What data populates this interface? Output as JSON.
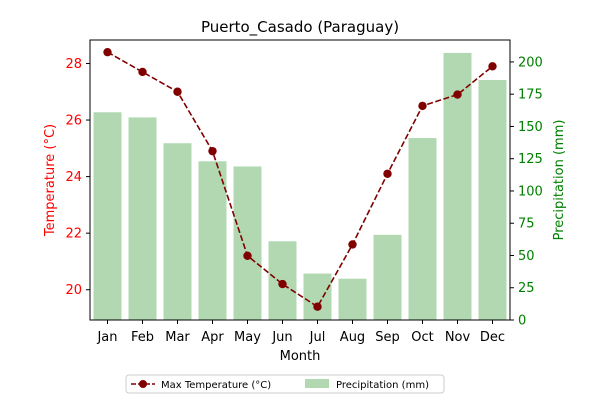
{
  "chart_data": {
    "type": "bar+line",
    "title": "Puerto_Casado (Paraguay)",
    "xlabel": "Month",
    "ylabel_left": "Temperature (°C)",
    "ylabel_right": "Precipitation (mm)",
    "categories": [
      "Jan",
      "Feb",
      "Mar",
      "Apr",
      "May",
      "Jun",
      "Jul",
      "Aug",
      "Sep",
      "Oct",
      "Nov",
      "Dec"
    ],
    "series": [
      {
        "name": "Max Temperature (°C)",
        "type": "line",
        "axis": "left",
        "values": [
          28.4,
          27.7,
          27.0,
          24.9,
          21.2,
          20.2,
          19.4,
          21.6,
          24.1,
          26.5,
          26.9,
          27.9
        ]
      },
      {
        "name": "Precipitation (mm)",
        "type": "bar",
        "axis": "right",
        "values": [
          161,
          157,
          137,
          123,
          119,
          61,
          36,
          32,
          66,
          141,
          207,
          186
        ]
      }
    ],
    "ylim_left": [
      18.93,
      28.83
    ],
    "ylim_right": [
      0,
      217
    ],
    "yticks_left": [
      "20",
      "22",
      "24",
      "26",
      "28"
    ],
    "yticks_right": [
      "0",
      "25",
      "50",
      "75",
      "100",
      "125",
      "150",
      "175",
      "200"
    ],
    "legend_placement": "bottom-center",
    "grid": false,
    "colors": {
      "temperature": "#800000",
      "temperature_axis": "#ff0000",
      "precipitation": "#b2d8b2",
      "precipitation_axis": "#008000"
    }
  }
}
